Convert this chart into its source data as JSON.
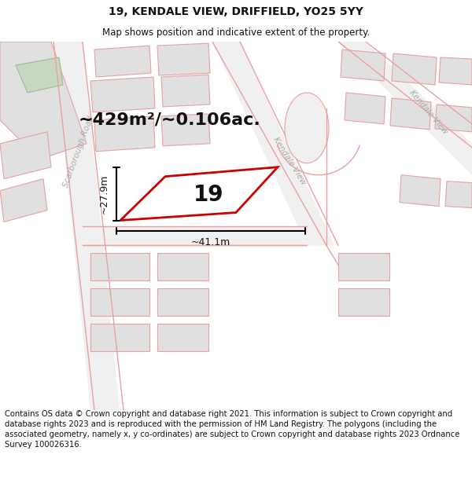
{
  "title": "19, KENDALE VIEW, DRIFFIELD, YO25 5YY",
  "subtitle": "Map shows position and indicative extent of the property.",
  "area_text": "~429m²/~0.106ac.",
  "number_label": "19",
  "dim_width": "~41.1m",
  "dim_height": "~27.9m",
  "street_label1": "Kendale View",
  "street_label2": "Kendale View",
  "street_label3": "Scarborough Road",
  "footer_text": "Contains OS data © Crown copyright and database right 2021. This information is subject to Crown copyright and database rights 2023 and is reproduced with the permission of HM Land Registry. The polygons (including the associated geometry, namely x, y co-ordinates) are subject to Crown copyright and database rights 2023 Ordnance Survey 100026316.",
  "bg_color": "#ffffff",
  "map_bg": "#f9f9f9",
  "road_color": "#e8e8e8",
  "block_color": "#e0e0e0",
  "line_pink": "#e8a0a0",
  "line_pink_dark": "#cc8888",
  "green_fill": "#c8d8c0",
  "green_edge": "#a0b898",
  "plot_red": "#cc0000",
  "dim_color": "#000000",
  "street_gray": "#aaaaaa",
  "title_fs": 10,
  "subtitle_fs": 8.5,
  "area_fs": 16,
  "num_fs": 20,
  "dim_fs": 9,
  "street_fs": 7.5,
  "footer_fs": 7.2
}
